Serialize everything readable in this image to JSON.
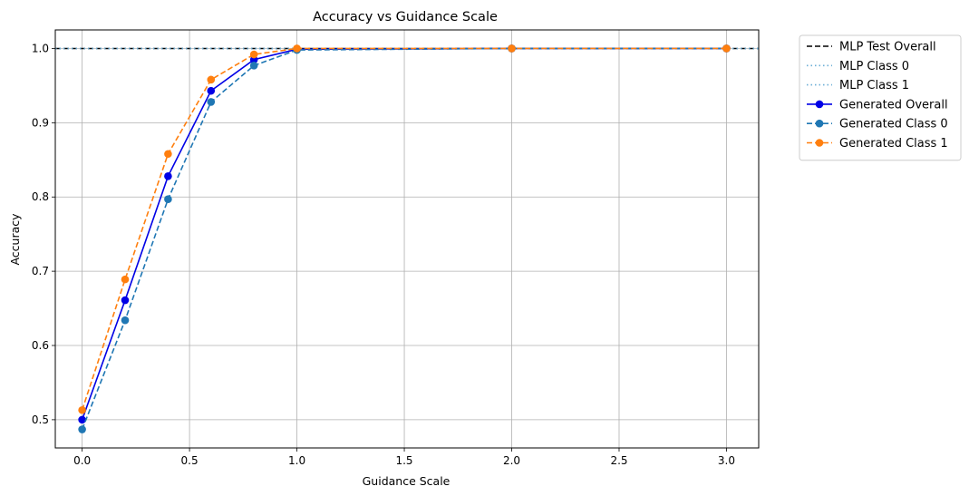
{
  "chart_data": {
    "type": "line",
    "title": "Accuracy vs Guidance Scale",
    "xlabel": "Guidance Scale",
    "ylabel": "Accuracy",
    "xlim": [
      -0.125,
      3.15
    ],
    "ylim": [
      0.462,
      1.025
    ],
    "xticks": [
      0.0,
      0.5,
      1.0,
      1.5,
      2.0,
      2.5,
      3.0
    ],
    "xtick_labels": [
      "0.0",
      "0.5",
      "1.0",
      "1.5",
      "2.0",
      "2.5",
      "3.0"
    ],
    "yticks": [
      0.5,
      0.6,
      0.7,
      0.8,
      0.9,
      1.0
    ],
    "ytick_labels": [
      "0.5",
      "0.6",
      "0.7",
      "0.8",
      "0.9",
      "1.0"
    ],
    "grid": true,
    "legend_placement": "outside-upper-right",
    "x": [
      0.0,
      0.2,
      0.4,
      0.6,
      0.8,
      1.0,
      2.0,
      3.0
    ],
    "reference_lines": [
      {
        "name": "MLP Test Overall",
        "y": 1.0,
        "color": "#000000",
        "style": "dashed"
      },
      {
        "name": "MLP Class 0",
        "y": 1.0,
        "color": "#6baed6",
        "style": "dotted"
      },
      {
        "name": "MLP Class 1",
        "y": 1.0,
        "color": "#6baed6",
        "style": "dotted"
      }
    ],
    "series": [
      {
        "name": "Generated Overall",
        "color": "#0000e6",
        "style": "solid",
        "marker": "circle",
        "values": [
          0.5,
          0.661,
          0.828,
          0.943,
          0.985,
          0.999,
          1.0,
          1.0
        ]
      },
      {
        "name": "Generated Class 0",
        "color": "#1f77b4",
        "style": "dashed",
        "marker": "circle",
        "values": [
          0.487,
          0.634,
          0.797,
          0.928,
          0.977,
          0.998,
          1.0,
          1.0
        ]
      },
      {
        "name": "Generated Class 1",
        "color": "#ff7f0e",
        "style": "dashed",
        "marker": "circle",
        "values": [
          0.513,
          0.689,
          0.858,
          0.958,
          0.992,
          1.0,
          1.0,
          1.0
        ]
      }
    ]
  }
}
